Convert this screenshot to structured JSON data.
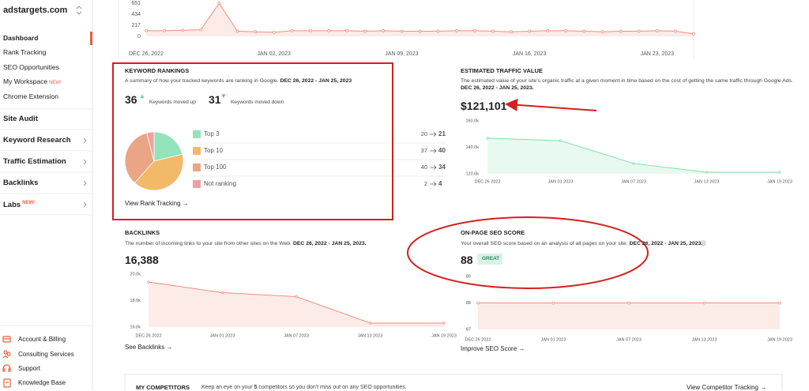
{
  "sidebar": {
    "brand": "adstargets.com",
    "nav": [
      {
        "label": "Dashboard"
      },
      {
        "label": "Rank Tracking"
      },
      {
        "label": "SEO Opportunities"
      },
      {
        "label": "My Workspace",
        "badge": "NEW!"
      },
      {
        "label": "Chrome Extension"
      }
    ],
    "sections": [
      {
        "label": "Site Audit"
      },
      {
        "label": "Keyword Research"
      },
      {
        "label": "Traffic Estimation"
      },
      {
        "label": "Backlinks"
      },
      {
        "label": "Labs",
        "badge": "NEW!"
      }
    ],
    "footer": [
      {
        "label": "Account & Billing"
      },
      {
        "label": "Consulting Services"
      },
      {
        "label": "Support"
      },
      {
        "label": "Knowledge Base"
      }
    ]
  },
  "cards": {
    "keyword_rankings": {
      "title": "KEYWORD RANKINGS",
      "description": "A summary of how your tracked keywords are ranking in Google.",
      "date": "DEC 26, 2022 - JAN 25, 2023",
      "moved_up": 36,
      "moved_up_label": "Keywords moved up",
      "moved_down": 31,
      "moved_down_label": "Keywords moved down",
      "link": "View Rank Tracking →"
    },
    "traffic_value": {
      "title": "ESTIMATED TRAFFIC VALUE",
      "description": "The estimated value of your site's organic traffic at a given moment in time based on the cost of getting the same traffic through Google Ads.",
      "date": "DEC 26, 2022 - JAN 25, 2023.",
      "value": "$121,101"
    },
    "backlinks": {
      "title": "BACKLINKS",
      "description": "The number of incoming links to your site from other sites on the Web.",
      "date": "DEC 26, 2022 - JAN 25, 2023.",
      "value": "16,388",
      "link": "See Backlinks →"
    },
    "seo_score": {
      "title": "ON-PAGE SEO SCORE",
      "description": "Your overall SEO score based on an analysis of all pages on your site.",
      "date": "DEC 26, 2022 - JAN 25, 2023.",
      "value": 88,
      "badge": "GREAT",
      "link": "Improve SEO Score →"
    },
    "competitors": {
      "title": "MY COMPETITORS",
      "text_before": "Keep an eye on your",
      "count": 5,
      "text_after": "competitors so you don't miss out on any SEO opportunities.",
      "link": "View Competitor Tracking →"
    }
  },
  "chart_data": [
    {
      "type": "line",
      "color": "#ef8f7c",
      "categories": [
        "DEC 26, 2022",
        null,
        null,
        null,
        null,
        null,
        null,
        "JAN 02, 2023",
        null,
        null,
        null,
        null,
        null,
        null,
        "JAN 09, 2023",
        null,
        null,
        null,
        null,
        null,
        null,
        "JAN 16, 2023",
        null,
        null,
        null,
        null,
        null,
        null,
        "JAN 23, 2023",
        null,
        null
      ],
      "values": [
        110,
        110,
        120,
        130,
        651,
        100,
        90,
        80,
        110,
        110,
        110,
        110,
        100,
        110,
        100,
        100,
        100,
        110,
        110,
        100,
        90,
        100,
        110,
        110,
        100,
        90,
        100,
        100,
        110,
        100,
        50
      ],
      "ylim": [
        0,
        651
      ],
      "yticks": [
        0,
        217,
        434,
        651
      ],
      "grid": false
    },
    {
      "type": "pie",
      "categories": [
        "Top 3",
        "Top 10",
        "Top 100",
        "Not ranking"
      ],
      "values": [
        21,
        40,
        34,
        4
      ],
      "previous_values": [
        20,
        37,
        40,
        2
      ],
      "colors": [
        "#94e3bb",
        "#f2b968",
        "#eaa586",
        "#f0a0a0"
      ]
    },
    {
      "type": "line",
      "color": "#7ee0a8",
      "categories": [
        "DEC 26 2022",
        "JAN 01 2023",
        "JAN 07 2023",
        "JAN 13 2023",
        "JAN 19 2023"
      ],
      "values": [
        146900,
        145000,
        127800,
        121200,
        121200
      ],
      "ylim": [
        120000,
        160000
      ],
      "yticks": [
        {
          "value": 120000,
          "label": "120.0k"
        },
        {
          "value": 140000,
          "label": "140.0k"
        },
        {
          "value": 160000,
          "label": "160.0k"
        }
      ],
      "grid": false
    },
    {
      "type": "line",
      "color": "#ef8f7c",
      "categories": [
        "DEC 26 2022",
        "JAN 01 2023",
        "JAN 07 2023",
        "JAN 13 2023",
        "JAN 19 2023"
      ],
      "values": [
        19400,
        18600,
        18300,
        16300,
        16300
      ],
      "ylim": [
        16000,
        20000
      ],
      "yticks": [
        {
          "value": 16000,
          "label": "16.0k"
        },
        {
          "value": 18000,
          "label": "18.0k"
        },
        {
          "value": 20000,
          "label": "20.0k"
        }
      ],
      "grid": false
    },
    {
      "type": "line",
      "color": "#ef8f7c",
      "categories": [
        "DEC 26 2022",
        "JAN 01 2023",
        "JAN 07 2023",
        "JAN 13 2023",
        "JAN 19 2023"
      ],
      "values": [
        88,
        88,
        88,
        88,
        88
      ],
      "ylim": [
        87,
        89
      ],
      "yticks": [
        87,
        88,
        89
      ],
      "grid": false
    }
  ]
}
